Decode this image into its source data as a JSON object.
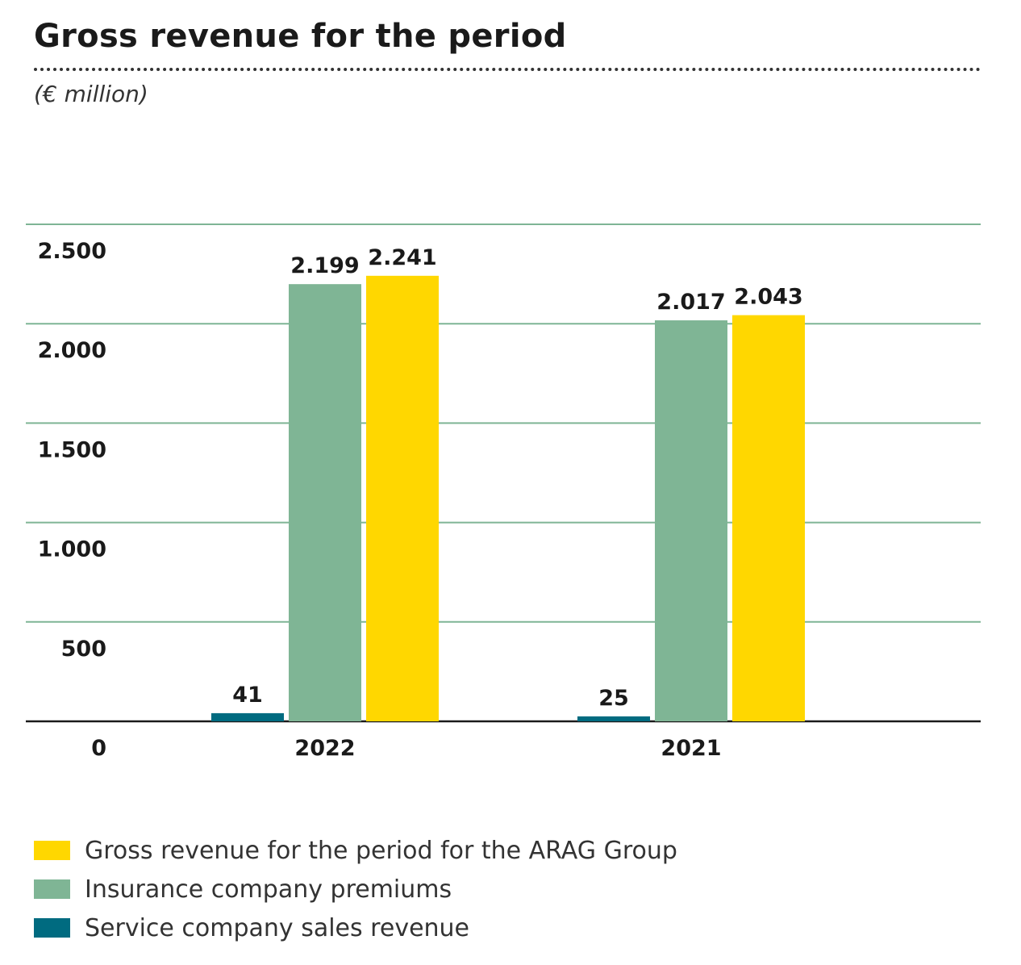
{
  "chart_data": {
    "type": "bar",
    "title": "Gross revenue for the period",
    "subtitle": "(€ million)",
    "categories": [
      "2022",
      "2021"
    ],
    "series": [
      {
        "name": "Service company sales revenue",
        "values": [
          41,
          25
        ],
        "value_labels": [
          "41",
          "25"
        ],
        "color": "#006b80"
      },
      {
        "name": "Insurance company premiums",
        "values": [
          2199,
          2017
        ],
        "value_labels": [
          "2.199",
          "2.017"
        ],
        "color": "#7fb595"
      },
      {
        "name": "Gross revenue for the period for the ARAG Group",
        "values": [
          2241,
          2043
        ],
        "value_labels": [
          "2.241",
          "2.043"
        ],
        "color": "#ffd700"
      }
    ],
    "yticks": [
      0,
      500,
      1000,
      1500,
      2000,
      2500
    ],
    "ytick_labels": [
      "0",
      "500",
      "1.000",
      "1.500",
      "2.000",
      "2.500"
    ],
    "ylim": [
      0,
      2500
    ],
    "grid": true,
    "grid_color": "#7fb595",
    "legend_order": [
      2,
      1,
      0
    ],
    "legend_position": "bottom-left"
  }
}
